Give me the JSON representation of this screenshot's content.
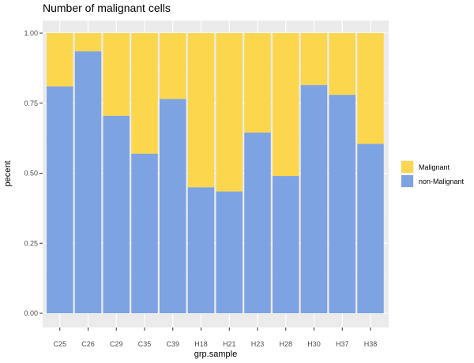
{
  "chart_data": {
    "type": "bar",
    "stacked": true,
    "title": "Number of malignant cells",
    "xlabel": "grp.sample",
    "ylabel": "pecent",
    "ylim": [
      0,
      1
    ],
    "yticks": [
      "0.00",
      "0.25",
      "0.50",
      "0.75",
      "1.00"
    ],
    "ytick_values": [
      0,
      0.25,
      0.5,
      0.75,
      1.0
    ],
    "categories": [
      "C25",
      "C26",
      "C29",
      "C35",
      "C39",
      "H18",
      "H21",
      "H23",
      "H28",
      "H30",
      "H37",
      "H38"
    ],
    "series": [
      {
        "name": "Malignant",
        "color": "#fcd74e",
        "values": [
          0.19,
          0.065,
          0.295,
          0.43,
          0.235,
          0.55,
          0.565,
          0.355,
          0.51,
          0.185,
          0.22,
          0.395
        ]
      },
      {
        "name": "non-Malignant",
        "color": "#7ea3e2",
        "values": [
          0.81,
          0.935,
          0.705,
          0.57,
          0.765,
          0.45,
          0.435,
          0.645,
          0.49,
          0.815,
          0.78,
          0.605
        ]
      }
    ],
    "grid": true,
    "legend": "right"
  }
}
